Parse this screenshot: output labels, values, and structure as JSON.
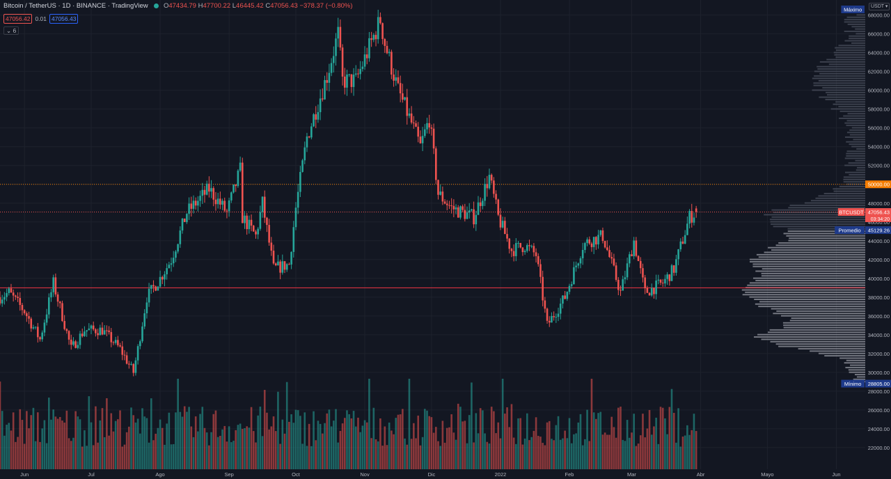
{
  "header": {
    "symbol_title": "Bitcoin / TetherUS · 1D · BINANCE · TradingView",
    "ohlc": {
      "o_label": "O",
      "open": "47434.79",
      "h_label": "H",
      "high": "47700.22",
      "l_label": "L",
      "low": "46445.42",
      "c_label": "C",
      "close": "47056.43",
      "change": "−378.37 (−0.80%)"
    },
    "bid": "47056.42",
    "spread": "0.01",
    "ask": "47056.43",
    "indicators_toggle": "⌄ 6",
    "currency": "USDT ▾"
  },
  "price_axis": {
    "ticks": [
      "68000.00",
      "66000.00",
      "64000.00",
      "62000.00",
      "60000.00",
      "58000.00",
      "56000.00",
      "54000.00",
      "52000.00",
      "50000.00",
      "48000.00",
      "46000.00",
      "44000.00",
      "42000.00",
      "40000.00",
      "38000.00",
      "36000.00",
      "34000.00",
      "32000.00",
      "30000.00",
      "28000.00",
      "26000.00",
      "24000.00",
      "22000.00"
    ],
    "badges": [
      {
        "label": "Máximo",
        "value": "",
        "price": 68600,
        "color": "#1e3a8a"
      },
      {
        "label": "BTCUSDT",
        "value": "47056.43",
        "sub": "03:34:20",
        "price": 47056.43,
        "color": "#ef5350"
      },
      {
        "label": "",
        "value": "50000.00",
        "price": 50000,
        "color": "#f57c00"
      },
      {
        "label": "Promedio",
        "value": "45129.26",
        "price": 45129.26,
        "color": "#1e3a8a"
      },
      {
        "label": "Mínimo",
        "value": "28805.00",
        "price": 28805,
        "color": "#1e3a8a"
      }
    ]
  },
  "time_axis": {
    "labels": [
      {
        "text": "Jun",
        "date": "2021-06-01"
      },
      {
        "text": "Jul",
        "date": "2021-07-01"
      },
      {
        "text": "Ago",
        "date": "2021-08-01"
      },
      {
        "text": "Sep",
        "date": "2021-09-01"
      },
      {
        "text": "Oct",
        "date": "2021-10-01"
      },
      {
        "text": "Nov",
        "date": "2021-11-01"
      },
      {
        "text": "Dic",
        "date": "2021-12-01"
      },
      {
        "text": "2022",
        "date": "2022-01-01"
      },
      {
        "text": "Feb",
        "date": "2022-02-01"
      },
      {
        "text": "Mar",
        "date": "2022-03-01"
      },
      {
        "text": "Abr",
        "date": "2022-04-01"
      },
      {
        "text": "Mayo",
        "date": "2022-05-01"
      },
      {
        "text": "Jun",
        "date": "2022-06-01"
      }
    ]
  },
  "chart_data": {
    "type": "candlestick",
    "title": "Bitcoin / TetherUS · 1D · BINANCE",
    "interval": "1D",
    "yrange": [
      19700,
      69600
    ],
    "xrange": [
      "2021-05-21",
      "2022-06-14"
    ],
    "up_color": "#26a69a",
    "down_color": "#ef5350",
    "horizontal_lines": [
      {
        "price": 50000,
        "color": "#f57c00",
        "style": "dotted"
      },
      {
        "price": 47056.43,
        "color": "#ef5350",
        "style": "dotted"
      },
      {
        "price": 39000,
        "color": "#f23645",
        "style": "solid"
      }
    ],
    "price_path": [
      [
        "2021-05-21",
        38000
      ],
      [
        "2021-05-25",
        38500
      ],
      [
        "2021-06-01",
        36500
      ],
      [
        "2021-06-08",
        33500
      ],
      [
        "2021-06-14",
        39500
      ],
      [
        "2021-06-18",
        36000
      ],
      [
        "2021-06-22",
        32500
      ],
      [
        "2021-06-28",
        34500
      ],
      [
        "2021-07-06",
        34500
      ],
      [
        "2021-07-14",
        32500
      ],
      [
        "2021-07-20",
        30000
      ],
      [
        "2021-07-22",
        32500
      ],
      [
        "2021-07-26",
        38000
      ],
      [
        "2021-08-01",
        40000
      ],
      [
        "2021-08-06",
        42000
      ],
      [
        "2021-08-13",
        47000
      ],
      [
        "2021-08-23",
        49500
      ],
      [
        "2021-08-31",
        47000
      ],
      [
        "2021-09-06",
        51500
      ],
      [
        "2021-09-07",
        46500
      ],
      [
        "2021-09-13",
        44500
      ],
      [
        "2021-09-16",
        48000
      ],
      [
        "2021-09-21",
        41000
      ],
      [
        "2021-09-28",
        41500
      ],
      [
        "2021-10-01",
        47500
      ],
      [
        "2021-10-06",
        55000
      ],
      [
        "2021-10-15",
        61500
      ],
      [
        "2021-10-20",
        66000
      ],
      [
        "2021-10-22",
        61000
      ],
      [
        "2021-10-28",
        61000
      ],
      [
        "2021-11-08",
        67500
      ],
      [
        "2021-11-10",
        65000
      ],
      [
        "2021-11-16",
        60000
      ],
      [
        "2021-11-22",
        56500
      ],
      [
        "2021-11-26",
        54000
      ],
      [
        "2021-11-30",
        57000
      ],
      [
        "2021-12-04",
        49000
      ],
      [
        "2021-12-10",
        47500
      ],
      [
        "2021-12-20",
        46500
      ],
      [
        "2021-12-27",
        50800
      ],
      [
        "2021-12-31",
        46500
      ],
      [
        "2022-01-06",
        43000
      ],
      [
        "2022-01-12",
        43500
      ],
      [
        "2022-01-17",
        42500
      ],
      [
        "2022-01-22",
        35000
      ],
      [
        "2022-01-30",
        38000
      ],
      [
        "2022-02-07",
        43500
      ],
      [
        "2022-02-10",
        44000
      ],
      [
        "2022-02-16",
        44500
      ],
      [
        "2022-02-24",
        38500
      ],
      [
        "2022-03-02",
        44000
      ],
      [
        "2022-03-07",
        38500
      ],
      [
        "2022-03-15",
        39500
      ],
      [
        "2022-03-20",
        41000
      ],
      [
        "2022-03-27",
        46500
      ],
      [
        "2022-03-30",
        47056
      ]
    ],
    "volume": {
      "ylim": [
        0,
        120000
      ],
      "note": "daily volume bars colored by candle direction"
    },
    "volume_profile": {
      "max_price": 68600,
      "avg_price": 45129.26,
      "min_price": 28805,
      "poc_price": 39000
    }
  }
}
